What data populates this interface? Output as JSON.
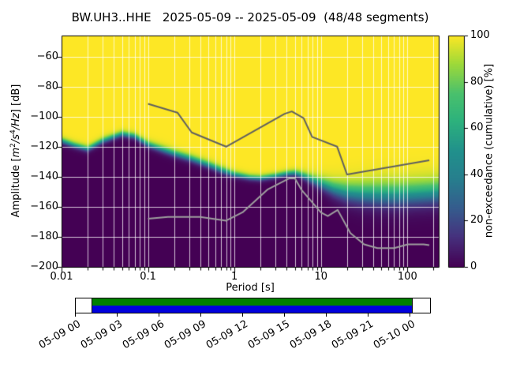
{
  "labels": {
    "title": "BW.UH3..HHE   2025-05-09 -- 2025-05-09  (48/48 segments)",
    "xlabel": "Period [s]",
    "ylabel_p1": "Amplitude [",
    "ylabel_m": "m",
    "ylabel_m_exp": "2",
    "ylabel_s": "/s",
    "ylabel_s_exp": "4",
    "ylabel_hz": "/Hz",
    "ylabel_p2": "] [dB]",
    "colorbar": "non-exceedance (cumulative) [%]"
  },
  "axes": {
    "xticks": [
      {
        "label": "0.01",
        "value": 0.01
      },
      {
        "label": "0.1",
        "value": 0.1
      },
      {
        "label": "1",
        "value": 1
      },
      {
        "label": "10",
        "value": 10
      },
      {
        "label": "100",
        "value": 100
      }
    ],
    "yticks": [
      {
        "label": "−60",
        "value": -60
      },
      {
        "label": "−80",
        "value": -80
      },
      {
        "label": "−100",
        "value": -100
      },
      {
        "label": "−120",
        "value": -120
      },
      {
        "label": "−140",
        "value": -140
      },
      {
        "label": "−160",
        "value": -160
      },
      {
        "label": "−180",
        "value": -180
      },
      {
        "label": "−200",
        "value": -200
      }
    ]
  },
  "colorbar": {
    "ticks": [
      {
        "label": "0",
        "value": 0
      },
      {
        "label": "20",
        "value": 20
      },
      {
        "label": "40",
        "value": 40
      },
      {
        "label": "60",
        "value": 60
      },
      {
        "label": "80",
        "value": 80
      },
      {
        "label": "100",
        "value": 100
      }
    ]
  },
  "timeline": {
    "labels": [
      "05-09 00",
      "05-09 03",
      "05-09 06",
      "05-09 09",
      "05-09 12",
      "05-09 15",
      "05-09 18",
      "05-09 21",
      "05-10 00"
    ],
    "green": "#008000",
    "blue": "#0000dd"
  },
  "chart_data": {
    "type": "heatmap",
    "title": "BW.UH3..HHE   2025-05-09 -- 2025-05-09  (48/48 segments)",
    "xlabel": "Period [s]",
    "ylabel": "Amplitude [m^2/s^4/Hz] [dB]",
    "xscale": "log",
    "xlim": [
      0.01,
      230
    ],
    "ylim": [
      -200,
      -46
    ],
    "x_ticks": [
      0.01,
      0.1,
      1,
      10,
      100
    ],
    "y_ticks": [
      -60,
      -80,
      -100,
      -120,
      -140,
      -160,
      -180,
      -200
    ],
    "colormap": "viridis",
    "colorbar_label": "non-exceedance (cumulative) [%]",
    "colorbar_range": [
      0,
      100
    ],
    "colorbar_ticks": [
      0,
      20,
      40,
      60,
      80,
      100
    ],
    "grid_color": "rgba(255,255,255,0.75)",
    "psd_distribution": {
      "description": "cumulative non-exceedance field: per period [s], median PSD level [dB] and spread [dB]",
      "points": [
        [
          0.01,
          -116,
          2.5
        ],
        [
          0.014,
          -119,
          2.5
        ],
        [
          0.02,
          -121.5,
          2.5
        ],
        [
          0.03,
          -116,
          2.5
        ],
        [
          0.05,
          -111.5,
          2.5
        ],
        [
          0.07,
          -113,
          2.5
        ],
        [
          0.1,
          -118.5,
          2.8
        ],
        [
          0.15,
          -122,
          3
        ],
        [
          0.2,
          -124.5,
          3
        ],
        [
          0.3,
          -127.5,
          3
        ],
        [
          0.5,
          -132,
          3
        ],
        [
          0.7,
          -135.5,
          3
        ],
        [
          1.0,
          -138.5,
          2.6
        ],
        [
          1.5,
          -140.5,
          2.4
        ],
        [
          2.0,
          -141,
          2.4
        ],
        [
          3.0,
          -139.5,
          2.4
        ],
        [
          4.0,
          -138,
          2.4
        ],
        [
          5.0,
          -137.5,
          2.5
        ],
        [
          6.0,
          -139,
          3
        ],
        [
          8.0,
          -142,
          4
        ],
        [
          10,
          -144.5,
          5
        ],
        [
          14,
          -148,
          6.5
        ],
        [
          20,
          -150.5,
          8
        ],
        [
          30,
          -151.5,
          9
        ],
        [
          50,
          -152,
          10
        ],
        [
          80,
          -152,
          10
        ],
        [
          120,
          -151.5,
          10
        ],
        [
          230,
          -150.5,
          10
        ]
      ]
    },
    "noise_models": {
      "nhnm_color": "#606060",
      "nlnm_color": "#9e9e9e",
      "nhnm": [
        [
          0.1,
          -91.5
        ],
        [
          0.22,
          -97.4
        ],
        [
          0.32,
          -110.5
        ],
        [
          0.8,
          -120.0
        ],
        [
          3.8,
          -98.1
        ],
        [
          4.6,
          -96.5
        ],
        [
          6.3,
          -101.0
        ],
        [
          7.9,
          -113.5
        ],
        [
          15.4,
          -120.0
        ],
        [
          20.0,
          -138.5
        ],
        [
          179,
          -129.0
        ]
      ],
      "nlnm": [
        [
          0.1,
          -168.0
        ],
        [
          0.17,
          -166.7
        ],
        [
          0.4,
          -166.7
        ],
        [
          0.8,
          -169.2
        ],
        [
          1.24,
          -163.7
        ],
        [
          2.4,
          -148.6
        ],
        [
          4.3,
          -141.1
        ],
        [
          5.0,
          -141.1
        ],
        [
          6.0,
          -149.0
        ],
        [
          10.0,
          -163.8
        ],
        [
          12.0,
          -166.2
        ],
        [
          15.6,
          -162.1
        ],
        [
          21.9,
          -177.5
        ],
        [
          31.6,
          -185.0
        ],
        [
          45.0,
          -187.5
        ],
        [
          70.0,
          -187.5
        ],
        [
          101.0,
          -185.0
        ],
        [
          154.0,
          -185.0
        ],
        [
          179.0,
          -185.5
        ]
      ]
    },
    "viridis_stops": [
      [
        0.0,
        "#440154"
      ],
      [
        0.13,
        "#46327e"
      ],
      [
        0.25,
        "#365c8d"
      ],
      [
        0.38,
        "#277f8e"
      ],
      [
        0.5,
        "#21918c"
      ],
      [
        0.63,
        "#2db27d"
      ],
      [
        0.75,
        "#4ac16d"
      ],
      [
        0.88,
        "#a0da39"
      ],
      [
        1.0,
        "#fde725"
      ]
    ],
    "timeline_coverage": {
      "start": "05-09 00",
      "end": "05-10 00",
      "tick_labels": [
        "05-09 00",
        "05-09 03",
        "05-09 06",
        "05-09 09",
        "05-09 12",
        "05-09 15",
        "05-09 18",
        "05-09 21",
        "05-10 00"
      ]
    }
  }
}
